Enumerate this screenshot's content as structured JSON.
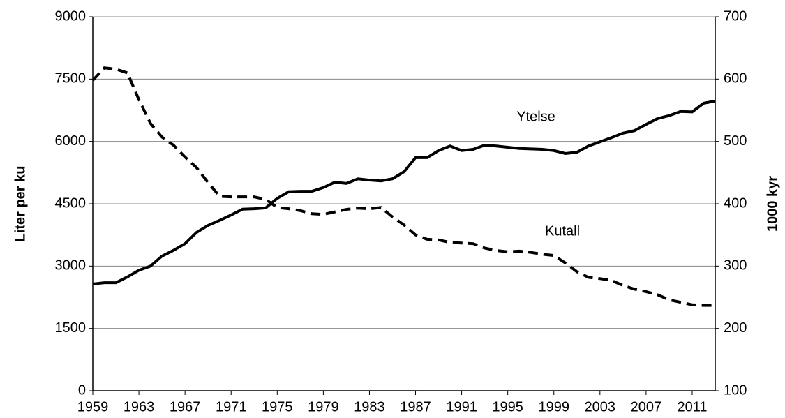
{
  "chart_data": {
    "type": "line",
    "x": [
      1959,
      1960,
      1961,
      1962,
      1963,
      1964,
      1965,
      1966,
      1967,
      1968,
      1969,
      1970,
      1971,
      1972,
      1973,
      1974,
      1975,
      1976,
      1977,
      1978,
      1979,
      1980,
      1981,
      1982,
      1983,
      1984,
      1985,
      1986,
      1987,
      1988,
      1989,
      1990,
      1991,
      1992,
      1993,
      1994,
      1995,
      1996,
      1997,
      1998,
      1999,
      2000,
      2001,
      2002,
      2003,
      2004,
      2005,
      2006,
      2007,
      2008,
      2009,
      2010,
      2011,
      2012,
      2013
    ],
    "series": [
      {
        "name": "Ytelse",
        "color": "#000000",
        "dash": "solid",
        "axis": "y",
        "values": [
          2570,
          2600,
          2600,
          2740,
          2900,
          3000,
          3240,
          3380,
          3540,
          3810,
          3980,
          4100,
          4230,
          4370,
          4380,
          4400,
          4630,
          4790,
          4800,
          4800,
          4890,
          5020,
          4990,
          5100,
          5070,
          5050,
          5100,
          5270,
          5610,
          5610,
          5780,
          5890,
          5780,
          5810,
          5910,
          5890,
          5860,
          5830,
          5820,
          5810,
          5780,
          5710,
          5740,
          5890,
          5990,
          6090,
          6200,
          6260,
          6410,
          6550,
          6620,
          6720,
          6710,
          6920,
          6970
        ]
      },
      {
        "name": "Kutall",
        "color": "#000000",
        "dash": "dashed",
        "axis": "y2",
        "values": [
          598,
          618,
          616,
          610,
          567,
          529,
          507,
          494,
          475,
          458,
          434,
          412,
          411,
          411,
          411,
          407,
          394,
          392,
          389,
          384,
          383,
          387,
          391,
          393,
          392,
          394,
          379,
          366,
          350,
          343,
          342,
          338,
          337,
          336,
          329,
          325,
          323,
          324,
          322,
          319,
          317,
          305,
          291,
          282,
          280,
          277,
          269,
          263,
          259,
          254,
          246,
          242,
          238,
          237,
          237
        ]
      }
    ],
    "y_label": "Liter per ku",
    "y2_label": "1000 kyr",
    "xlim": [
      1959,
      2013
    ],
    "xticks": [
      1959,
      1963,
      1967,
      1971,
      1975,
      1979,
      1983,
      1987,
      1991,
      1995,
      1999,
      2003,
      2007,
      2011
    ],
    "ylim": [
      0,
      9000
    ],
    "yticks": [
      0,
      1500,
      3000,
      4500,
      6000,
      7500,
      9000
    ],
    "y2lim": [
      100,
      700
    ],
    "y2ticks": [
      100,
      200,
      300,
      400,
      500,
      600,
      700
    ],
    "grid": true,
    "legend": false
  }
}
